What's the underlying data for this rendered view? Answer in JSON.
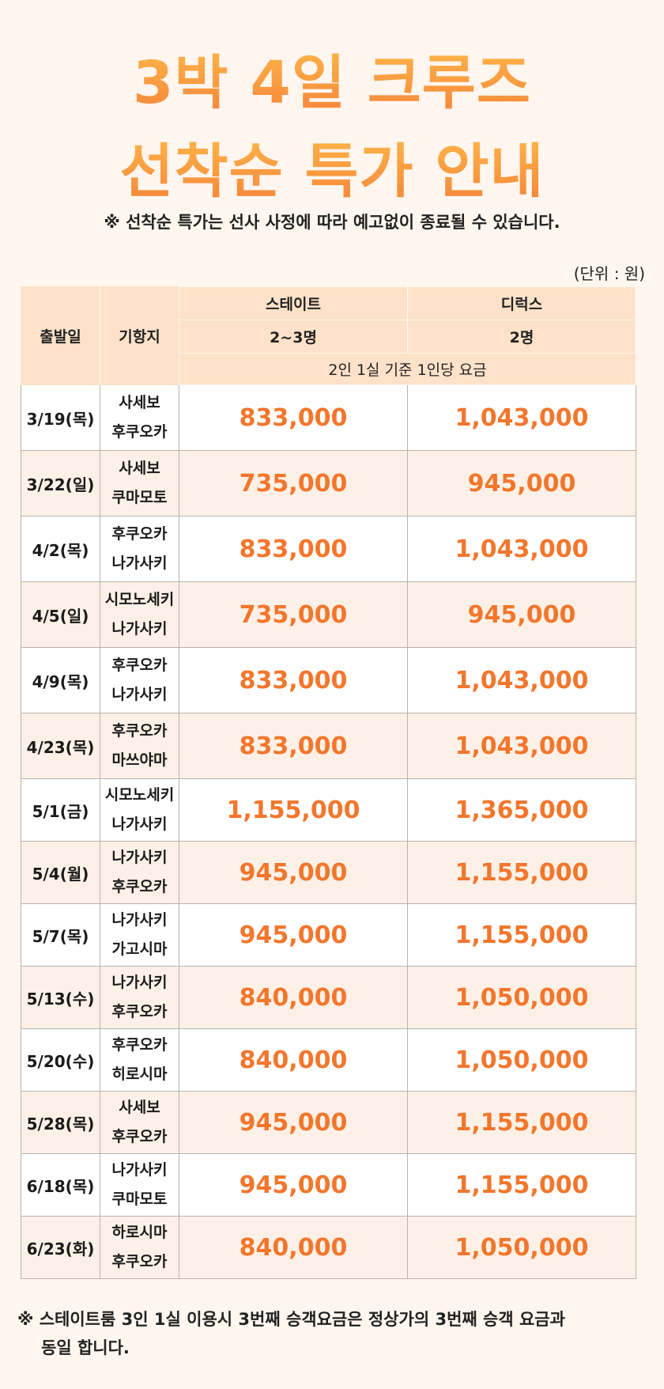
{
  "title": {
    "line1": "3박 4일 크루즈",
    "line2": "선착순 특가 안내"
  },
  "notice": "※ 선착순 특가는 선사 사정에 따라 예고없이 종료될 수 있습니다.",
  "unit": "(단위 : 원)",
  "table": {
    "col_date": "출발일",
    "col_dest": "기항지",
    "col_state": "스테이트",
    "col_deluxe": "디럭스",
    "state_people": "2~3명",
    "deluxe_people": "2명",
    "basis": "2인 1실 기준 1인당 요금",
    "rows": [
      {
        "date": "3/19(목)",
        "dest1": "사세보",
        "dest2": "후쿠오카",
        "state": "833,000",
        "deluxe": "1,043,000"
      },
      {
        "date": "3/22(일)",
        "dest1": "사세보",
        "dest2": "쿠마모토",
        "state": "735,000",
        "deluxe": "945,000"
      },
      {
        "date": "4/2(목)",
        "dest1": "후쿠오카",
        "dest2": "나가사키",
        "state": "833,000",
        "deluxe": "1,043,000"
      },
      {
        "date": "4/5(일)",
        "dest1": "시모노세키",
        "dest2": "나가사키",
        "state": "735,000",
        "deluxe": "945,000"
      },
      {
        "date": "4/9(목)",
        "dest1": "후쿠오카",
        "dest2": "나가사키",
        "state": "833,000",
        "deluxe": "1,043,000"
      },
      {
        "date": "4/23(목)",
        "dest1": "후쿠오카",
        "dest2": "마쓰야마",
        "state": "833,000",
        "deluxe": "1,043,000"
      },
      {
        "date": "5/1(금)",
        "dest1": "시모노세키",
        "dest2": "나가사키",
        "state": "1,155,000",
        "deluxe": "1,365,000"
      },
      {
        "date": "5/4(월)",
        "dest1": "나가사키",
        "dest2": "후쿠오카",
        "state": "945,000",
        "deluxe": "1,155,000"
      },
      {
        "date": "5/7(목)",
        "dest1": "나가사키",
        "dest2": "가고시마",
        "state": "945,000",
        "deluxe": "1,155,000"
      },
      {
        "date": "5/13(수)",
        "dest1": "나가사키",
        "dest2": "후쿠오카",
        "state": "840,000",
        "deluxe": "1,050,000"
      },
      {
        "date": "5/20(수)",
        "dest1": "후쿠오카",
        "dest2": "히로시마",
        "state": "840,000",
        "deluxe": "1,050,000"
      },
      {
        "date": "5/28(목)",
        "dest1": "사세보",
        "dest2": "후쿠오카",
        "state": "945,000",
        "deluxe": "1,155,000"
      },
      {
        "date": "6/18(목)",
        "dest1": "나가사키",
        "dest2": "쿠마모토",
        "state": "945,000",
        "deluxe": "1,155,000"
      },
      {
        "date": "6/23(화)",
        "dest1": "하로시마",
        "dest2": "후쿠오카",
        "state": "840,000",
        "deluxe": "1,050,000"
      }
    ]
  },
  "footnote": {
    "line1": "※ 스테이트룸 3인 1실 이용시 3번째 승객요금은 정상가의 3번째 승객 요금과",
    "line2": "동일 합니다."
  },
  "colors": {
    "accent": "#f3762c",
    "title_top": "#ffb449",
    "title_bottom": "#f4843a",
    "header_bg": "#fde2c9",
    "page_bg": "#fff6ef"
  }
}
